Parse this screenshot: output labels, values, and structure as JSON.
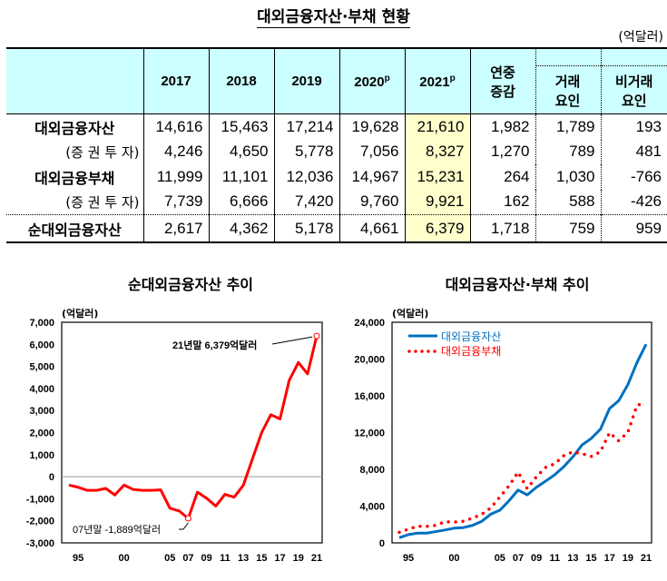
{
  "table": {
    "title": "대외금융자산·부채 현황",
    "unit": "(억달러)",
    "headers": [
      "2017",
      "2018",
      "2019",
      "2020",
      "2021",
      "연중",
      "증감",
      "거래",
      "요인",
      "비거래",
      "요인"
    ],
    "prelim_mark": "p",
    "rows": [
      {
        "label": "대외금융자산",
        "values": [
          "14,616",
          "15,463",
          "17,214",
          "19,628",
          "21,610",
          "1,982",
          "1,789",
          "193"
        ]
      },
      {
        "label": "(증 권 투 자)",
        "values": [
          "4,246",
          "4,650",
          "5,778",
          "7,056",
          "8,327",
          "1,270",
          "789",
          "481"
        ]
      },
      {
        "label": "대외금융부채",
        "values": [
          "11,999",
          "11,101",
          "12,036",
          "14,967",
          "15,231",
          "264",
          "1,030",
          "-766"
        ]
      },
      {
        "label": "(증 권 투 자)",
        "values": [
          "7,739",
          "6,666",
          "7,420",
          "9,760",
          "9,921",
          "162",
          "588",
          "-426"
        ]
      },
      {
        "label": "순대외금융자산",
        "values": [
          "2,617",
          "4,362",
          "5,178",
          "4,661",
          "6,379",
          "1,718",
          "759",
          "959"
        ]
      }
    ],
    "highlight_color": "#ffffcc",
    "header_color": "#ccffff"
  },
  "chart_data": [
    {
      "type": "line",
      "title": "순대외금융자산 추이",
      "ylabel": "(억달러)",
      "x": [
        1994,
        1995,
        1996,
        1997,
        1998,
        1999,
        2000,
        2001,
        2002,
        2003,
        2004,
        2005,
        2006,
        2007,
        2008,
        2009,
        2010,
        2011,
        2012,
        2013,
        2014,
        2015,
        2016,
        2017,
        2018,
        2019,
        2020,
        2021
      ],
      "xticks": [
        "95",
        "00",
        "05",
        "07",
        "09",
        "11",
        "13",
        "15",
        "17",
        "19",
        "21"
      ],
      "xtick_years": [
        1995,
        2000,
        2005,
        2007,
        2009,
        2011,
        2013,
        2015,
        2017,
        2019,
        2021
      ],
      "yticks": [
        "7,000",
        "6,000",
        "5,000",
        "4,000",
        "3,000",
        "2,000",
        "1,000",
        "0",
        "-1,000",
        "-2,000",
        "-3,000"
      ],
      "ylim": [
        -3000,
        7000
      ],
      "series": [
        {
          "values": [
            -380,
            -480,
            -620,
            -620,
            -530,
            -830,
            -380,
            -580,
            -620,
            -620,
            -600,
            -1430,
            -1550,
            -1889,
            -700,
            -980,
            -1330,
            -800,
            -930,
            -390,
            810,
            2000,
            2810,
            2617,
            4362,
            5178,
            4661,
            6379
          ],
          "color": "#ff0000"
        }
      ],
      "annotations": [
        {
          "text": "21년말 6,379억달러",
          "x": 2021,
          "y": 6379
        },
        {
          "text": "07년말 -1,889억달러",
          "x": 2007,
          "y": -1889
        }
      ]
    },
    {
      "type": "line",
      "title": "대외금융자산·부채 추이",
      "ylabel": "(억달러)",
      "x": [
        1994,
        1995,
        1996,
        1997,
        1998,
        1999,
        2000,
        2001,
        2002,
        2003,
        2004,
        2005,
        2006,
        2007,
        2008,
        2009,
        2010,
        2011,
        2012,
        2013,
        2014,
        2015,
        2016,
        2017,
        2018,
        2019,
        2020,
        2021
      ],
      "xticks": [
        "95",
        "00",
        "05",
        "07",
        "09",
        "11",
        "13",
        "15",
        "17",
        "19",
        "21"
      ],
      "xtick_years": [
        1995,
        2000,
        2005,
        2007,
        2009,
        2011,
        2013,
        2015,
        2017,
        2019,
        2021
      ],
      "yticks": [
        "24,000",
        "20,000",
        "16,000",
        "12,000",
        "8,000",
        "4,000",
        "0"
      ],
      "ylim": [
        0,
        24000
      ],
      "legend": "top-left",
      "series": [
        {
          "name": "대외금융자산",
          "color": "#0070c0",
          "style": "solid",
          "values": [
            560,
            900,
            1060,
            1060,
            1230,
            1400,
            1600,
            1660,
            1900,
            2330,
            3120,
            3550,
            4580,
            5750,
            5220,
            6050,
            6710,
            7410,
            8300,
            9370,
            10660,
            11360,
            12360,
            14616,
            15463,
            17214,
            19628,
            21610
          ]
        },
        {
          "name": "대외금융부채",
          "color": "#ff0000",
          "style": "dotted",
          "values": [
            1150,
            1500,
            1800,
            1800,
            1900,
            2300,
            2250,
            2350,
            2700,
            3100,
            3800,
            5000,
            6200,
            7700,
            5900,
            7200,
            8200,
            8600,
            9500,
            9900,
            9700,
            9400,
            9900,
            11999,
            11101,
            12036,
            14967,
            15231
          ]
        }
      ]
    }
  ]
}
